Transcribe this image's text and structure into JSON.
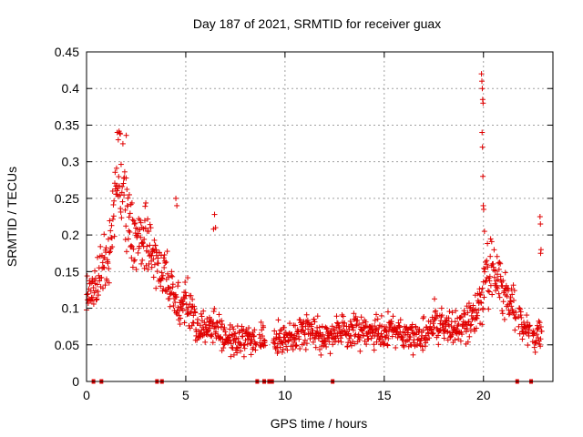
{
  "chart_data": {
    "type": "scatter",
    "title": "Day 187 of 2021, SRMTID for receiver guax",
    "xlabel": "GPS time / hours",
    "ylabel": "SRMTID / TECUs",
    "xlim": [
      0,
      23.5
    ],
    "ylim": [
      0,
      0.45
    ],
    "xticks": [
      0,
      5,
      10,
      15,
      20
    ],
    "yticks": [
      0,
      0.05,
      0.1,
      0.15,
      0.2,
      0.25,
      0.3,
      0.35,
      0.4,
      0.45
    ],
    "xtick_labels": [
      "0",
      "5",
      "10",
      "15",
      "20"
    ],
    "ytick_labels": [
      "0",
      "0.05",
      "0.1",
      "0.15",
      "0.2",
      "0.25",
      "0.3",
      "0.35",
      "0.4",
      "0.45"
    ],
    "grid": true,
    "marker": "+",
    "color": "#e00000",
    "zero_points_x": [
      0.35,
      0.75,
      3.55,
      3.8,
      8.6,
      8.95,
      9.2,
      9.35,
      12.4,
      21.7,
      22.4
    ],
    "series": [
      {
        "name": "SRMTID",
        "trend": [
          [
            0.0,
            0.12
          ],
          [
            0.3,
            0.13
          ],
          [
            0.6,
            0.15
          ],
          [
            0.9,
            0.16
          ],
          [
            1.2,
            0.2
          ],
          [
            1.5,
            0.27
          ],
          [
            1.8,
            0.28
          ],
          [
            2.1,
            0.22
          ],
          [
            2.4,
            0.19
          ],
          [
            2.7,
            0.2
          ],
          [
            3.0,
            0.2
          ],
          [
            3.3,
            0.18
          ],
          [
            3.6,
            0.16
          ],
          [
            4.0,
            0.14
          ],
          [
            4.3,
            0.12
          ],
          [
            4.6,
            0.1
          ],
          [
            5.0,
            0.11
          ],
          [
            5.5,
            0.08
          ],
          [
            6.0,
            0.07
          ],
          [
            6.5,
            0.08
          ],
          [
            7.0,
            0.06
          ],
          [
            7.5,
            0.055
          ],
          [
            8.0,
            0.06
          ],
          [
            8.5,
            0.055
          ],
          [
            9.0,
            0.06
          ],
          [
            9.5,
            0.06
          ],
          [
            10.0,
            0.06
          ],
          [
            10.5,
            0.065
          ],
          [
            11.0,
            0.07
          ],
          [
            11.5,
            0.07
          ],
          [
            12.0,
            0.06
          ],
          [
            12.5,
            0.065
          ],
          [
            13.0,
            0.065
          ],
          [
            13.5,
            0.07
          ],
          [
            14.0,
            0.07
          ],
          [
            14.5,
            0.065
          ],
          [
            15.0,
            0.065
          ],
          [
            15.5,
            0.07
          ],
          [
            16.0,
            0.065
          ],
          [
            16.5,
            0.06
          ],
          [
            17.0,
            0.065
          ],
          [
            17.5,
            0.08
          ],
          [
            18.0,
            0.075
          ],
          [
            18.5,
            0.07
          ],
          [
            19.0,
            0.075
          ],
          [
            19.5,
            0.085
          ],
          [
            19.9,
            0.11
          ],
          [
            20.2,
            0.15
          ],
          [
            20.5,
            0.15
          ],
          [
            21.0,
            0.12
          ],
          [
            21.5,
            0.1
          ],
          [
            22.0,
            0.08
          ],
          [
            22.5,
            0.06
          ],
          [
            23.0,
            0.07
          ]
        ],
        "spikes": [
          [
            19.9,
            0.42
          ],
          [
            19.92,
            0.41
          ],
          [
            19.94,
            0.4
          ],
          [
            19.96,
            0.385
          ],
          [
            19.98,
            0.38
          ],
          [
            19.93,
            0.34
          ],
          [
            19.95,
            0.32
          ],
          [
            19.97,
            0.28
          ],
          [
            19.99,
            0.24
          ],
          [
            20.01,
            0.235
          ],
          [
            20.05,
            0.205
          ],
          [
            22.85,
            0.225
          ],
          [
            22.87,
            0.215
          ],
          [
            22.9,
            0.18
          ],
          [
            22.88,
            0.175
          ],
          [
            6.45,
            0.228
          ],
          [
            6.5,
            0.21
          ],
          [
            6.4,
            0.208
          ],
          [
            4.5,
            0.25
          ],
          [
            4.55,
            0.24
          ],
          [
            1.55,
            0.34
          ],
          [
            1.7,
            0.338
          ],
          [
            2.0,
            0.336
          ],
          [
            1.6,
            0.33
          ]
        ]
      }
    ]
  }
}
